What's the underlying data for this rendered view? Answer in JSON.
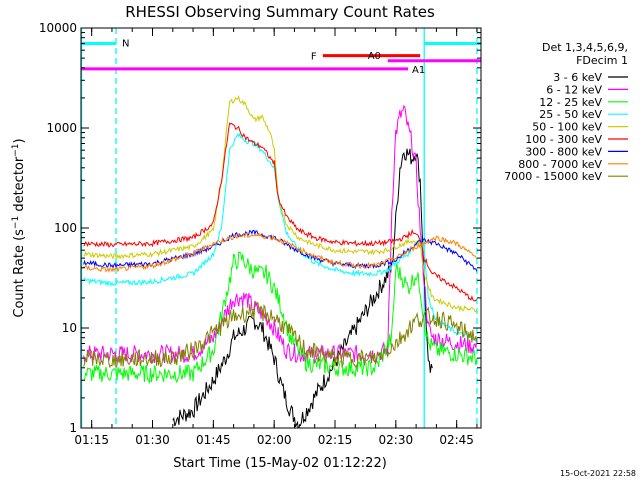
{
  "chart_data": {
    "type": "line",
    "title": "RHESSI Observing Summary Count Rates",
    "xlabel": "Start Time (15-May-02 01:12:22)",
    "ylabel": "Count Rate (s",
    "ylabel_sup": "−1",
    "ylabel_tail": " detector",
    "ylabel_end": ")",
    "y_scale": "log",
    "ylim": [
      1,
      10000
    ],
    "xlim": [
      "01:12:22",
      "02:51:00"
    ],
    "x_ticks": [
      "01:15",
      "01:30",
      "01:45",
      "02:00",
      "02:15",
      "02:30",
      "02:45"
    ],
    "y_ticks": [
      "1",
      "10",
      "100",
      "1000",
      "10000"
    ],
    "timestamp": "15-Oct-2021 22:58",
    "legend": {
      "header1": "Det 1,3,4,5,6,9,",
      "header2": "FDecim 1",
      "placement": "right"
    },
    "series": [
      {
        "name": "3 - 6 keV",
        "color": "#000000",
        "points": [
          [
            "01:35",
            1.2
          ],
          [
            "01:40",
            1.5
          ],
          [
            "01:45",
            3
          ],
          [
            "01:48",
            5
          ],
          [
            "01:50",
            8
          ],
          [
            "01:53",
            10
          ],
          [
            "01:55",
            12
          ],
          [
            "01:57",
            10
          ],
          [
            "02:00",
            5
          ],
          [
            "02:02",
            2.5
          ],
          [
            "02:04",
            1.5
          ],
          [
            "02:06",
            1.1
          ],
          [
            "02:29",
            40
          ],
          [
            "02:30",
            120
          ],
          [
            "02:31",
            400
          ],
          [
            "02:32",
            600
          ],
          [
            "02:33",
            550
          ],
          [
            "02:34",
            500
          ],
          [
            "02:35",
            600
          ],
          [
            "02:36",
            300
          ],
          [
            "02:37",
            30
          ],
          [
            "02:38",
            4
          ],
          [
            "02:39",
            3.5
          ]
        ]
      },
      {
        "name": "6 - 12 keV",
        "color": "#ff00ff",
        "points": [
          [
            "01:13",
            5.5
          ],
          [
            "01:25",
            5.5
          ],
          [
            "01:40",
            5.5
          ],
          [
            "01:45",
            8
          ],
          [
            "01:48",
            14
          ],
          [
            "01:50",
            20
          ],
          [
            "01:53",
            20
          ],
          [
            "01:55",
            16
          ],
          [
            "01:58",
            13
          ],
          [
            "02:00",
            10
          ],
          [
            "02:03",
            6
          ],
          [
            "02:06",
            5.5
          ],
          [
            "02:15",
            5.5
          ],
          [
            "02:25",
            5.5
          ],
          [
            "02:28",
            6
          ],
          [
            "02:29",
            150
          ],
          [
            "02:30",
            900
          ],
          [
            "02:31",
            1300
          ],
          [
            "02:32",
            1500
          ],
          [
            "02:33",
            1000
          ],
          [
            "02:34",
            700
          ],
          [
            "02:35",
            400
          ],
          [
            "02:36",
            100
          ],
          [
            "02:37",
            30
          ],
          [
            "02:38",
            10
          ],
          [
            "02:39",
            8
          ],
          [
            "02:45",
            7
          ],
          [
            "02:50",
            6.5
          ]
        ]
      },
      {
        "name": "12 - 25 keV",
        "color": "#00ff00",
        "points": [
          [
            "01:13",
            3.5
          ],
          [
            "01:30",
            3.5
          ],
          [
            "01:40",
            3.5
          ],
          [
            "01:45",
            6
          ],
          [
            "01:48",
            20
          ],
          [
            "01:50",
            45
          ],
          [
            "01:52",
            50
          ],
          [
            "01:54",
            40
          ],
          [
            "01:56",
            35
          ],
          [
            "01:58",
            35
          ],
          [
            "02:00",
            25
          ],
          [
            "02:02",
            15
          ],
          [
            "02:04",
            8
          ],
          [
            "02:08",
            4.5
          ],
          [
            "02:15",
            4
          ],
          [
            "02:25",
            4
          ],
          [
            "02:29",
            8
          ],
          [
            "02:30",
            40
          ],
          [
            "02:32",
            30
          ],
          [
            "02:33",
            25
          ],
          [
            "02:35",
            35
          ],
          [
            "02:36",
            25
          ],
          [
            "02:37",
            12
          ],
          [
            "02:38",
            7
          ],
          [
            "02:40",
            6
          ],
          [
            "02:45",
            5.5
          ],
          [
            "02:50",
            5
          ]
        ]
      },
      {
        "name": "25 - 50 keV",
        "color": "#00ffff",
        "points": [
          [
            "01:13",
            30
          ],
          [
            "01:20",
            28
          ],
          [
            "01:30",
            29
          ],
          [
            "01:40",
            35
          ],
          [
            "01:45",
            55
          ],
          [
            "01:47",
            100
          ],
          [
            "01:49",
            600
          ],
          [
            "01:51",
            850
          ],
          [
            "01:53",
            750
          ],
          [
            "01:55",
            700
          ],
          [
            "01:57",
            600
          ],
          [
            "02:00",
            400
          ],
          [
            "02:01",
            200
          ],
          [
            "02:03",
            90
          ],
          [
            "02:06",
            60
          ],
          [
            "02:10",
            45
          ],
          [
            "02:15",
            38
          ],
          [
            "02:20",
            35
          ],
          [
            "02:25",
            35
          ],
          [
            "02:28",
            38
          ],
          [
            "02:30",
            45
          ],
          [
            "02:33",
            55
          ],
          [
            "02:35",
            70
          ],
          [
            "02:36",
            80
          ],
          [
            "02:37",
            60
          ],
          [
            "02:38",
            20
          ],
          [
            "02:40",
            12
          ],
          [
            "02:45",
            9
          ],
          [
            "02:50",
            7.5
          ]
        ]
      },
      {
        "name": "50 - 100 keV",
        "color": "#cccc00",
        "points": [
          [
            "01:13",
            55
          ],
          [
            "01:20",
            52
          ],
          [
            "01:30",
            55
          ],
          [
            "01:40",
            65
          ],
          [
            "01:45",
            95
          ],
          [
            "01:47",
            300
          ],
          [
            "01:49",
            1800
          ],
          [
            "01:51",
            2000
          ],
          [
            "01:53",
            1700
          ],
          [
            "01:55",
            1200
          ],
          [
            "01:57",
            1300
          ],
          [
            "01:59",
            900
          ],
          [
            "02:00",
            600
          ],
          [
            "02:01",
            200
          ],
          [
            "02:03",
            110
          ],
          [
            "02:06",
            80
          ],
          [
            "02:10",
            68
          ],
          [
            "02:15",
            60
          ],
          [
            "02:20",
            58
          ],
          [
            "02:25",
            58
          ],
          [
            "02:28",
            60
          ],
          [
            "02:30",
            65
          ],
          [
            "02:32",
            70
          ],
          [
            "02:34",
            75
          ],
          [
            "02:36",
            70
          ],
          [
            "02:37",
            35
          ],
          [
            "02:39",
            20
          ],
          [
            "02:45",
            16
          ],
          [
            "02:50",
            15
          ]
        ]
      },
      {
        "name": "100 - 300 keV",
        "color": "#ff0000",
        "points": [
          [
            "01:13",
            70
          ],
          [
            "01:20",
            68
          ],
          [
            "01:30",
            70
          ],
          [
            "01:40",
            80
          ],
          [
            "01:45",
            110
          ],
          [
            "01:47",
            300
          ],
          [
            "01:49",
            1100
          ],
          [
            "01:51",
            1000
          ],
          [
            "01:53",
            800
          ],
          [
            "01:55",
            700
          ],
          [
            "01:57",
            650
          ],
          [
            "01:59",
            500
          ],
          [
            "02:00",
            450
          ],
          [
            "02:01",
            200
          ],
          [
            "02:03",
            130
          ],
          [
            "02:06",
            95
          ],
          [
            "02:10",
            80
          ],
          [
            "02:15",
            72
          ],
          [
            "02:20",
            70
          ],
          [
            "02:25",
            70
          ],
          [
            "02:28",
            72
          ],
          [
            "02:30",
            75
          ],
          [
            "02:32",
            80
          ],
          [
            "02:34",
            90
          ],
          [
            "02:36",
            80
          ],
          [
            "02:37",
            50
          ],
          [
            "02:39",
            35
          ],
          [
            "02:45",
            25
          ],
          [
            "02:50",
            18
          ]
        ]
      },
      {
        "name": "300 - 800 keV",
        "color": "#0000ff",
        "points": [
          [
            "01:13",
            45
          ],
          [
            "01:20",
            42
          ],
          [
            "01:30",
            44
          ],
          [
            "01:40",
            55
          ],
          [
            "01:45",
            65
          ],
          [
            "01:50",
            85
          ],
          [
            "01:55",
            90
          ],
          [
            "02:00",
            80
          ],
          [
            "02:05",
            62
          ],
          [
            "02:10",
            50
          ],
          [
            "02:15",
            44
          ],
          [
            "02:20",
            42
          ],
          [
            "02:25",
            42
          ],
          [
            "02:30",
            48
          ],
          [
            "02:35",
            70
          ],
          [
            "02:37",
            75
          ],
          [
            "02:40",
            70
          ],
          [
            "02:45",
            55
          ],
          [
            "02:50",
            38
          ]
        ]
      },
      {
        "name": "800 - 7000 keV",
        "color": "#ff8000",
        "points": [
          [
            "01:13",
            40
          ],
          [
            "01:20",
            38
          ],
          [
            "01:30",
            42
          ],
          [
            "01:40",
            55
          ],
          [
            "01:45",
            70
          ],
          [
            "01:50",
            82
          ],
          [
            "01:55",
            85
          ],
          [
            "02:00",
            80
          ],
          [
            "02:05",
            65
          ],
          [
            "02:10",
            52
          ],
          [
            "02:15",
            45
          ],
          [
            "02:20",
            42
          ],
          [
            "02:25",
            42
          ],
          [
            "02:30",
            50
          ],
          [
            "02:35",
            65
          ],
          [
            "02:40",
            80
          ],
          [
            "02:45",
            70
          ],
          [
            "02:50",
            50
          ]
        ]
      },
      {
        "name": "7000 - 15000 keV",
        "color": "#808000",
        "points": [
          [
            "01:13",
            5
          ],
          [
            "01:20",
            4.8
          ],
          [
            "01:30",
            5
          ],
          [
            "01:35",
            5
          ],
          [
            "01:40",
            6
          ],
          [
            "01:45",
            9
          ],
          [
            "01:50",
            13
          ],
          [
            "01:55",
            15
          ],
          [
            "02:00",
            13
          ],
          [
            "02:05",
            8
          ],
          [
            "02:08",
            6
          ],
          [
            "02:15",
            5
          ],
          [
            "02:20",
            5
          ],
          [
            "02:25",
            5
          ],
          [
            "02:30",
            7
          ],
          [
            "02:35",
            12
          ],
          [
            "02:38",
            13
          ],
          [
            "02:42",
            12
          ],
          [
            "02:45",
            10
          ],
          [
            "02:50",
            8
          ]
        ]
      }
    ],
    "overlays": [
      {
        "label": "N",
        "color": "#00ffff",
        "start": "01:12:22",
        "end": "01:21",
        "level": 7000
      },
      {
        "label": "F",
        "color": "#ff0000",
        "start": "02:12",
        "end": "02:36",
        "level": 5300
      },
      {
        "label": "A0",
        "color": "#ff00ff",
        "start": "02:28",
        "end": "02:51",
        "level": 4700
      },
      {
        "label": "A1",
        "color": "#ff00ff",
        "start": "01:12:22",
        "end": "02:33",
        "level": 3900
      },
      {
        "label": "",
        "color": "#00ffff",
        "start": "02:37",
        "end": "02:51",
        "level": 7000
      }
    ],
    "vertical_lines": [
      {
        "time": "01:12:30",
        "color": "#00ffff",
        "style": "solid"
      },
      {
        "time": "01:21",
        "color": "#00ffff",
        "style": "dashed"
      },
      {
        "time": "02:37",
        "color": "#00ffff",
        "style": "solid"
      },
      {
        "time": "02:50",
        "color": "#00ffff",
        "style": "dashed"
      }
    ]
  }
}
